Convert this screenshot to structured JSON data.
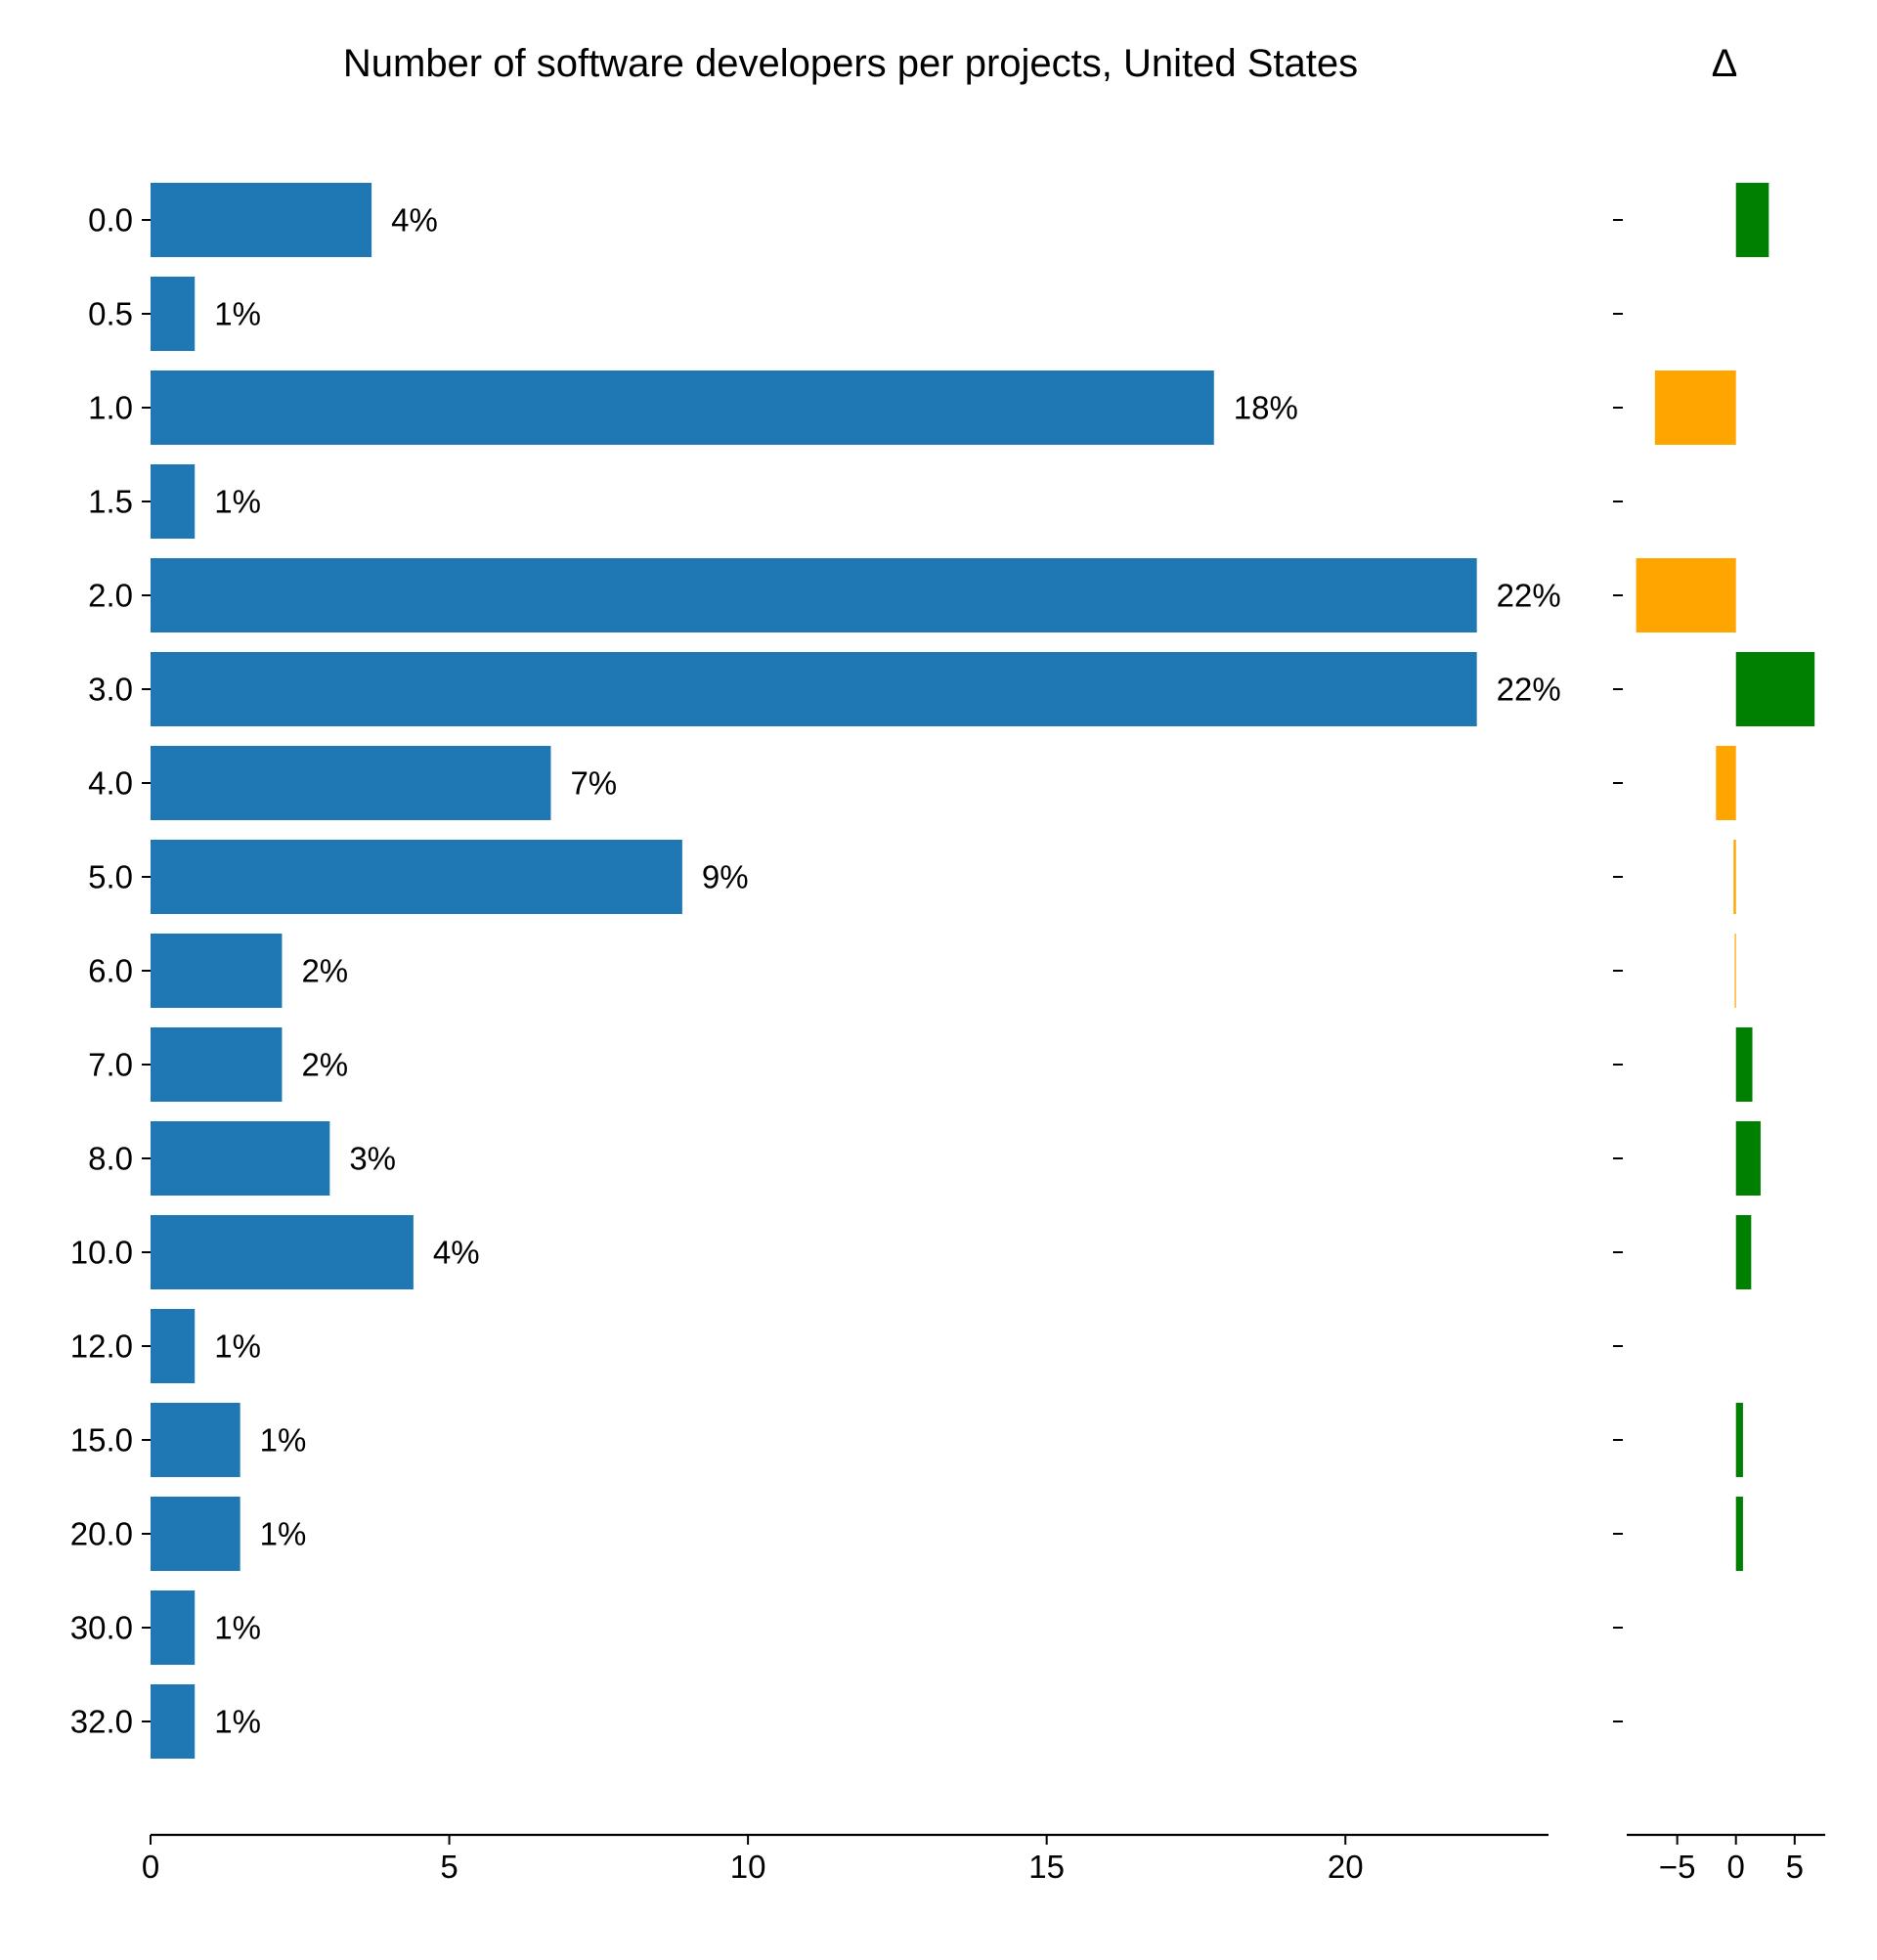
{
  "chart_data": [
    {
      "type": "bar",
      "orientation": "horizontal",
      "title": "Number of software developers per projects, United States",
      "xlabel": "",
      "ylabel": "",
      "categories": [
        "0.0",
        "0.5",
        "1.0",
        "1.5",
        "2.0",
        "3.0",
        "4.0",
        "5.0",
        "6.0",
        "7.0",
        "8.0",
        "10.0",
        "12.0",
        "15.0",
        "20.0",
        "30.0",
        "32.0"
      ],
      "values": [
        3.7,
        0.74,
        17.8,
        0.74,
        22.2,
        22.2,
        6.7,
        8.9,
        2.2,
        2.2,
        3.0,
        4.4,
        0.74,
        1.5,
        1.5,
        0.74,
        0.74
      ],
      "data_labels": [
        "4%",
        "1%",
        "18%",
        "1%",
        "22%",
        "22%",
        "7%",
        "9%",
        "2%",
        "2%",
        "3%",
        "4%",
        "1%",
        "1%",
        "1%",
        "1%",
        "1%"
      ],
      "xlim": [
        0,
        23.4
      ],
      "xticks": [
        "0",
        "5",
        "10",
        "15",
        "20"
      ],
      "color": "#1f77b4",
      "grid": false,
      "legend": "none"
    },
    {
      "type": "bar",
      "orientation": "horizontal",
      "title": "Δ",
      "xlabel": "",
      "ylabel": "",
      "categories": [
        "0.0",
        "0.5",
        "1.0",
        "1.5",
        "2.0",
        "3.0",
        "4.0",
        "5.0",
        "6.0",
        "7.0",
        "8.0",
        "10.0",
        "12.0",
        "15.0",
        "20.0",
        "30.0",
        "32.0"
      ],
      "values": [
        2.8,
        0,
        -6.9,
        0,
        -8.5,
        6.7,
        -1.7,
        -0.2,
        -0.1,
        1.4,
        2.1,
        1.3,
        0,
        0.6,
        0.6,
        0,
        0
      ],
      "xlim": [
        -9.3,
        7.6
      ],
      "xticks": [
        "−5",
        "0",
        "5"
      ],
      "colors": {
        "positive": "#008000",
        "negative": "#ffa500"
      },
      "grid": false,
      "legend": "none"
    }
  ]
}
